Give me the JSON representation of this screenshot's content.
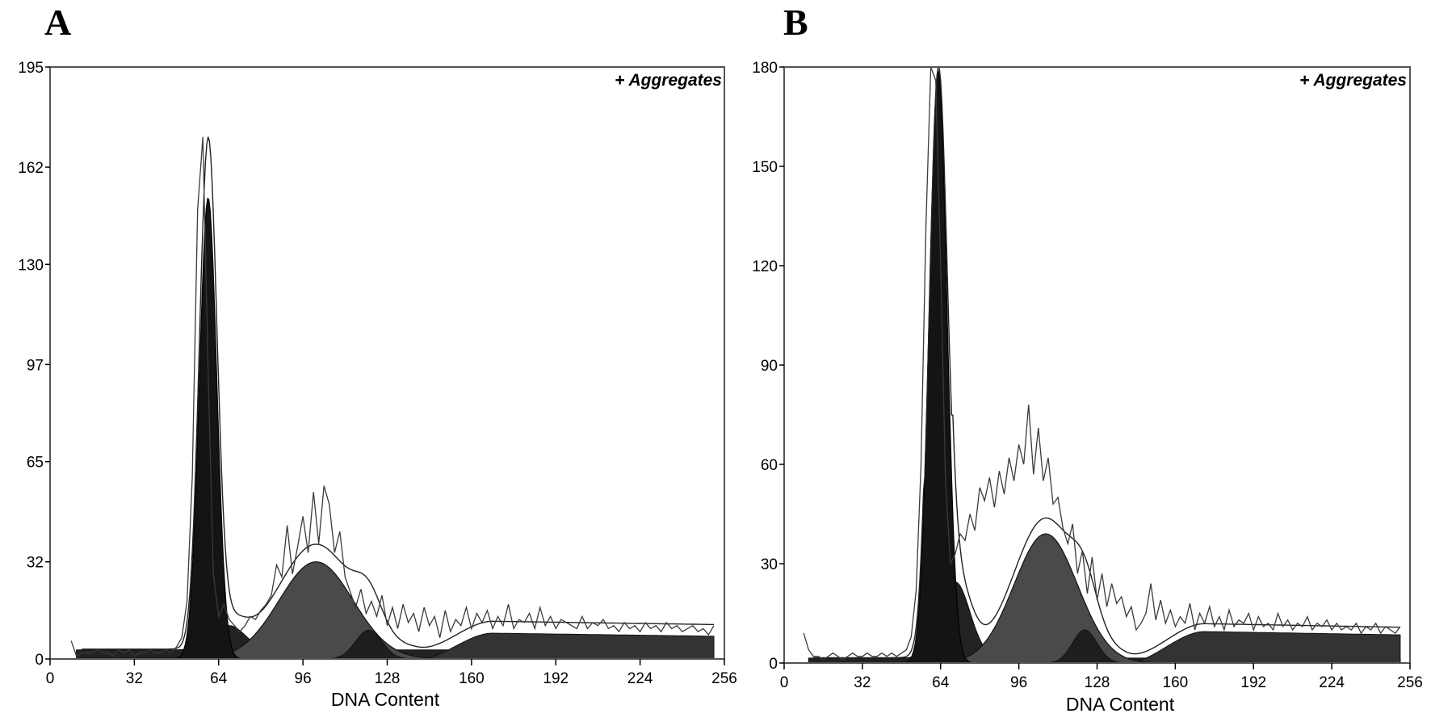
{
  "panels": {
    "a": {
      "letter": "A"
    },
    "b": {
      "letter": "B"
    }
  },
  "colors": {
    "g1_fill": "#141414",
    "s_fill": "#4a4a4a",
    "g2_fill": "#1e1e1e",
    "aggregates_fill": "#333333",
    "debris_fill": "#222222",
    "line": "#3a3a3a",
    "frame": "#555555"
  },
  "chart_data": [
    {
      "type": "area",
      "panel": "A",
      "annotation": "+ Aggregates",
      "xlabel": "DNA Content",
      "ylabel": "",
      "xlim": [
        0,
        256
      ],
      "ylim": [
        0,
        195
      ],
      "xticks": [
        0,
        32,
        64,
        96,
        128,
        160,
        192,
        224,
        256
      ],
      "yticks": [
        0,
        32,
        65,
        97,
        130,
        162,
        195
      ],
      "grid": false,
      "x_start": 8,
      "x_end": 252,
      "components": {
        "g1": {
          "center": 60,
          "sigma": 3.3,
          "height": 152
        },
        "s": {
          "center": 101,
          "sigma": 14,
          "height": 32
        },
        "g2": {
          "center": 121,
          "sigma": 5,
          "height": 9.5
        },
        "aggregates": {
          "start": 140,
          "peak_x": 168,
          "peak": 8.5,
          "end_level": 7.5,
          "end": 252
        },
        "debris": {
          "start": 10,
          "level": 3,
          "bump_x": 68,
          "bump": 8,
          "end": 252
        }
      },
      "fit_peak": 172,
      "raw_histogram": {
        "x_start": 8,
        "step": 2,
        "y": [
          6,
          1,
          2,
          2,
          2,
          3,
          2,
          2,
          1,
          3,
          2,
          3,
          1,
          2,
          2,
          3,
          2,
          2,
          3,
          2,
          4,
          7,
          19,
          60,
          148,
          172,
          95,
          28,
          14,
          18,
          13,
          11,
          9,
          11,
          14,
          13,
          16,
          18,
          21,
          31,
          27,
          44,
          28,
          37,
          47,
          35,
          55,
          38,
          57,
          51,
          35,
          42,
          27,
          22,
          17,
          23,
          15,
          19,
          14,
          21,
          11,
          17,
          10,
          18,
          12,
          15,
          9,
          17,
          11,
          14,
          7,
          16,
          9,
          13,
          11,
          17,
          10,
          15,
          12,
          16,
          10,
          14,
          11,
          18,
          10,
          13,
          12,
          15,
          10,
          17,
          11,
          14,
          10,
          13,
          12,
          11,
          10,
          14,
          10,
          12,
          11,
          13,
          10,
          11,
          9,
          12,
          10,
          11,
          9,
          12,
          10,
          11,
          9,
          12,
          10,
          11,
          9,
          10,
          11,
          9,
          10,
          8,
          11
        ]
      }
    },
    {
      "type": "area",
      "panel": "B",
      "annotation": "+ Aggregates",
      "xlabel": "DNA Content",
      "ylabel": "",
      "xlim": [
        0,
        256
      ],
      "ylim": [
        0,
        180
      ],
      "xticks": [
        0,
        32,
        64,
        96,
        128,
        160,
        192,
        224,
        256
      ],
      "yticks": [
        0,
        30,
        60,
        90,
        120,
        150,
        180
      ],
      "grid": false,
      "x_start": 8,
      "x_end": 252,
      "components": {
        "g1": {
          "center": 63,
          "sigma": 3.6,
          "height": 179
        },
        "s": {
          "center": 107,
          "sigma": 13,
          "height": 39
        },
        "g2": {
          "center": 123,
          "sigma": 5,
          "height": 10
        },
        "aggregates": {
          "start": 140,
          "peak_x": 172,
          "peak": 9.5,
          "end_level": 8.5,
          "end": 252
        },
        "debris": {
          "start": 10,
          "level": 1.5,
          "bump_x": 70,
          "bump": 23,
          "end": 252
        }
      },
      "fit_peak": 180,
      "raw_histogram": {
        "x_start": 8,
        "step": 2,
        "y": [
          9,
          4,
          2,
          2,
          1,
          2,
          3,
          2,
          1,
          2,
          3,
          2,
          2,
          3,
          2,
          2,
          3,
          2,
          3,
          2,
          3,
          4,
          8,
          22,
          60,
          132,
          180,
          176,
          120,
          55,
          30,
          33,
          39,
          37,
          45,
          40,
          53,
          49,
          56,
          47,
          58,
          51,
          62,
          55,
          66,
          60,
          78,
          57,
          71,
          55,
          62,
          48,
          50,
          41,
          36,
          42,
          27,
          34,
          21,
          32,
          19,
          27,
          17,
          24,
          18,
          20,
          14,
          17,
          10,
          12,
          15,
          24,
          13,
          19,
          12,
          16,
          11,
          14,
          12,
          18,
          10,
          15,
          12,
          17,
          11,
          14,
          10,
          16,
          11,
          13,
          12,
          15,
          10,
          14,
          11,
          12,
          10,
          15,
          11,
          13,
          10,
          12,
          11,
          14,
          10,
          12,
          11,
          13,
          10,
          12,
          10,
          11,
          10,
          12,
          9,
          11,
          10,
          12,
          9,
          11,
          10,
          9,
          11
        ]
      }
    }
  ]
}
